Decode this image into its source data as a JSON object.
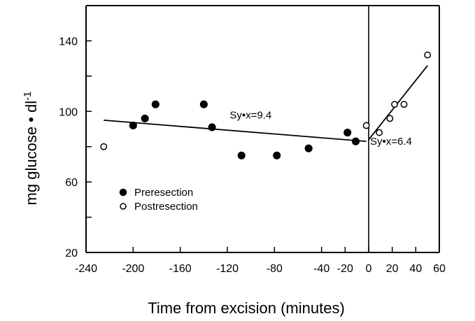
{
  "chart_data": {
    "type": "scatter",
    "title": "",
    "xlabel": "Time from excision (minutes)",
    "ylabel": "mg glucose",
    "ylabel_unit": "dl",
    "ylabel_exponent": "-1",
    "xlim": [
      -240,
      60
    ],
    "ylim": [
      20,
      160
    ],
    "xticks": [
      -240,
      -200,
      -160,
      -120,
      -80,
      -40,
      -20,
      0,
      20,
      40,
      60
    ],
    "yticks_labeled": [
      20,
      60,
      100,
      140
    ],
    "yticks_minor": [
      40,
      80,
      120
    ],
    "grid": false,
    "legend_position": "bottom-left",
    "series": [
      {
        "name": "Preresection",
        "marker": "filled-circle",
        "points": [
          {
            "x": -200,
            "y": 92
          },
          {
            "x": -190,
            "y": 96
          },
          {
            "x": -181,
            "y": 104
          },
          {
            "x": -140,
            "y": 104
          },
          {
            "x": -133,
            "y": 91
          },
          {
            "x": -108,
            "y": 75
          },
          {
            "x": -78,
            "y": 75
          },
          {
            "x": -51,
            "y": 79
          },
          {
            "x": -18,
            "y": 88
          },
          {
            "x": -11,
            "y": 83
          }
        ]
      },
      {
        "name": "Postresection",
        "marker": "open-circle",
        "points": [
          {
            "x": -225,
            "y": 80
          },
          {
            "x": -2,
            "y": 92
          },
          {
            "x": 9,
            "y": 88
          },
          {
            "x": 18,
            "y": 96
          },
          {
            "x": 22,
            "y": 104
          },
          {
            "x": 30,
            "y": 104
          },
          {
            "x": 50,
            "y": 132
          }
        ]
      }
    ],
    "fit_lines": [
      {
        "from": {
          "x": -225,
          "y": 95
        },
        "to": {
          "x": -2,
          "y": 83
        }
      },
      {
        "from": {
          "x": 0,
          "y": 84
        },
        "to": {
          "x": 50,
          "y": 126
        }
      }
    ],
    "reference_line_x": 0,
    "annotations": [
      {
        "text": "Sy•x=9.4",
        "x": -118,
        "y": 96
      },
      {
        "text": "Sy•x=6.4",
        "x": 0,
        "y": 81
      }
    ]
  }
}
